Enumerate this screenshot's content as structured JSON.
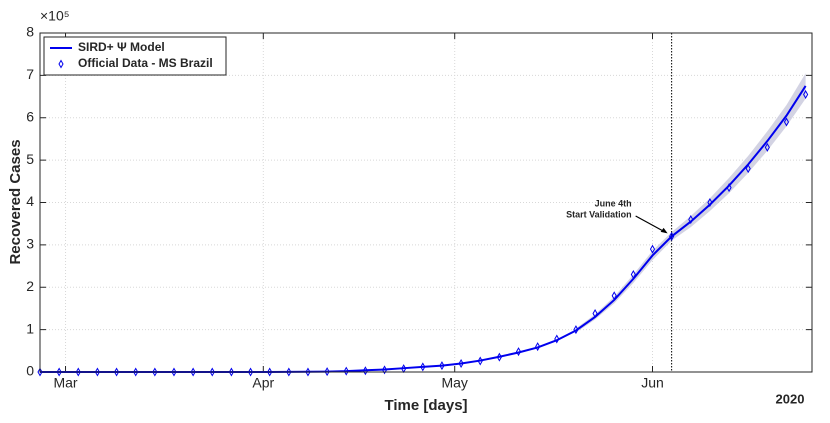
{
  "chart_data": {
    "type": "line",
    "x_label": "Time [days]",
    "y_label": "Recovered Cases",
    "y_multiplier": "×10⁵",
    "x_year_label": "2020",
    "x": [
      "2020-02-26",
      "2020-02-29",
      "2020-03-03",
      "2020-03-06",
      "2020-03-09",
      "2020-03-12",
      "2020-03-15",
      "2020-03-18",
      "2020-03-21",
      "2020-03-24",
      "2020-03-27",
      "2020-03-30",
      "2020-04-02",
      "2020-04-05",
      "2020-04-08",
      "2020-04-11",
      "2020-04-14",
      "2020-04-17",
      "2020-04-20",
      "2020-04-23",
      "2020-04-26",
      "2020-04-29",
      "2020-05-02",
      "2020-05-05",
      "2020-05-08",
      "2020-05-11",
      "2020-05-14",
      "2020-05-17",
      "2020-05-20",
      "2020-05-23",
      "2020-05-26",
      "2020-05-29",
      "2020-06-01",
      "2020-06-04",
      "2020-06-07",
      "2020-06-10",
      "2020-06-13",
      "2020-06-16",
      "2020-06-19",
      "2020-06-22",
      "2020-06-25"
    ],
    "series": [
      {
        "name": "SIRD+ Ψ Model",
        "color": "#0000ee",
        "style": "line",
        "values": [
          0,
          0,
          0,
          0,
          0,
          0,
          0,
          0,
          0,
          0,
          0,
          0,
          0.001,
          0.002,
          0.005,
          0.01,
          0.02,
          0.04,
          0.06,
          0.09,
          0.12,
          0.15,
          0.2,
          0.27,
          0.36,
          0.46,
          0.58,
          0.75,
          0.98,
          1.3,
          1.7,
          2.2,
          2.75,
          3.2,
          3.55,
          3.95,
          4.4,
          4.9,
          5.45,
          6.05,
          6.75
        ]
      },
      {
        "name": "Official Data - MS Brazil",
        "color": "#0000ee",
        "style": "marker",
        "values": [
          0,
          0,
          0,
          0,
          0,
          0,
          0,
          0,
          0,
          0,
          0,
          0,
          0,
          0,
          0,
          0.01,
          0.02,
          0.03,
          0.05,
          0.08,
          0.12,
          0.15,
          0.2,
          0.26,
          0.35,
          0.48,
          0.6,
          0.78,
          1.0,
          1.38,
          1.8,
          2.3,
          2.9,
          3.2,
          3.6,
          4.0,
          4.35,
          4.8,
          5.3,
          5.9,
          6.55
        ]
      }
    ],
    "band": {
      "color": "#c8c8dc",
      "x": [
        "2020-05-20",
        "2020-05-23",
        "2020-05-26",
        "2020-05-29",
        "2020-06-01",
        "2020-06-04",
        "2020-06-07",
        "2020-06-10",
        "2020-06-13",
        "2020-06-16",
        "2020-06-19",
        "2020-06-22",
        "2020-06-25"
      ],
      "lower": [
        0.93,
        1.24,
        1.62,
        2.1,
        2.64,
        3.1,
        3.42,
        3.8,
        4.22,
        4.7,
        5.22,
        5.8,
        6.45
      ],
      "upper": [
        1.03,
        1.36,
        1.78,
        2.3,
        2.86,
        3.3,
        3.68,
        4.1,
        4.58,
        5.1,
        5.68,
        6.3,
        7.05
      ]
    },
    "vline": "2020-06-04",
    "annotation": [
      "June 4th",
      "Start Validation"
    ],
    "xlim": [
      "2020-02-26",
      "2020-06-26"
    ],
    "xticks": [
      {
        "value": "2020-03-01",
        "label": "Mar"
      },
      {
        "value": "2020-04-01",
        "label": "Apr"
      },
      {
        "value": "2020-05-01",
        "label": "May"
      },
      {
        "value": "2020-06-01",
        "label": "Jun"
      }
    ],
    "ylim": [
      0,
      8
    ],
    "yticks": [
      0,
      1,
      2,
      3,
      4,
      5,
      6,
      7,
      8
    ],
    "grid": true,
    "legend": "upper-left"
  }
}
